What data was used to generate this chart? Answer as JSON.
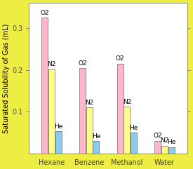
{
  "solvents": [
    "Hexane",
    "Benzene",
    "Methanol",
    "Water"
  ],
  "gases": [
    "O2",
    "N2",
    "He"
  ],
  "values": {
    "Hexane": [
      0.325,
      0.202,
      0.054
    ],
    "Benzene": [
      0.204,
      0.11,
      0.03
    ],
    "Methanol": [
      0.215,
      0.112,
      0.05
    ],
    "Water": [
      0.031,
      0.019,
      0.016
    ]
  },
  "bar_colors": [
    "#FFB6C8",
    "#FFFF88",
    "#88CCEE"
  ],
  "gas_labels": [
    "O2",
    "N2",
    "He"
  ],
  "ylabel": "Saturated Solubility of Gas (mL)",
  "ylim": [
    0,
    0.36
  ],
  "yticks": [
    0.1,
    0.2,
    0.3
  ],
  "background_outer": "#EDED44",
  "background_inner": "#FFFFFF",
  "bar_width": 0.18,
  "label_fontsize": 6.5,
  "tick_fontsize": 7,
  "ylabel_fontsize": 7
}
